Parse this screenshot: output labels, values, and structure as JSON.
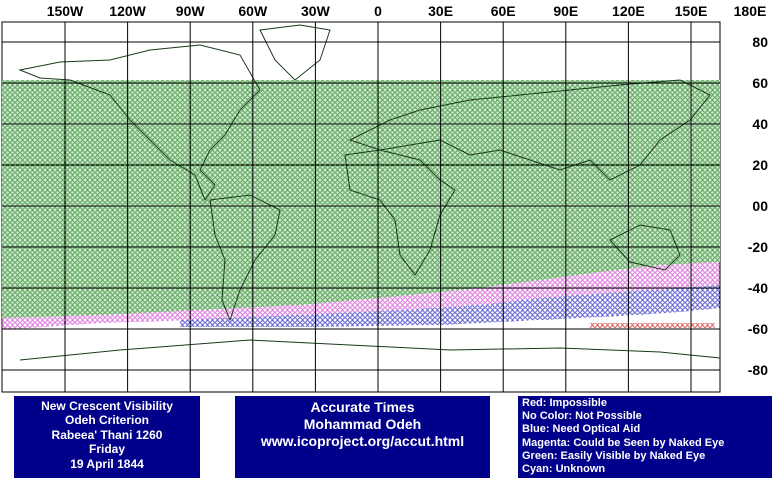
{
  "map": {
    "lon_labels": [
      "150W",
      "120W",
      "90W",
      "60W",
      "30W",
      "0",
      "30E",
      "60E",
      "90E",
      "120E",
      "150E",
      "180E"
    ],
    "lat_labels": [
      "80",
      "60",
      "40",
      "20",
      "00",
      "-20",
      "-40",
      "-60",
      "-80"
    ]
  },
  "info": {
    "lines": [
      "New Crescent Visibility",
      "Odeh Criterion",
      "Rabeea' Thani 1260",
      "Friday",
      "19 April 1844"
    ]
  },
  "credit": {
    "lines": [
      "Accurate Times",
      "Mohammad Odeh",
      "www.icoproject.org/accut.html"
    ]
  },
  "legend": {
    "lines": [
      "Red: Impossible",
      "No Color: Not Possible",
      "Blue: Need Optical Aid",
      "Magenta: Could be Seen by Naked Eye",
      "Green: Easily Visible by Naked Eye",
      "Cyan: Unknown"
    ]
  }
}
